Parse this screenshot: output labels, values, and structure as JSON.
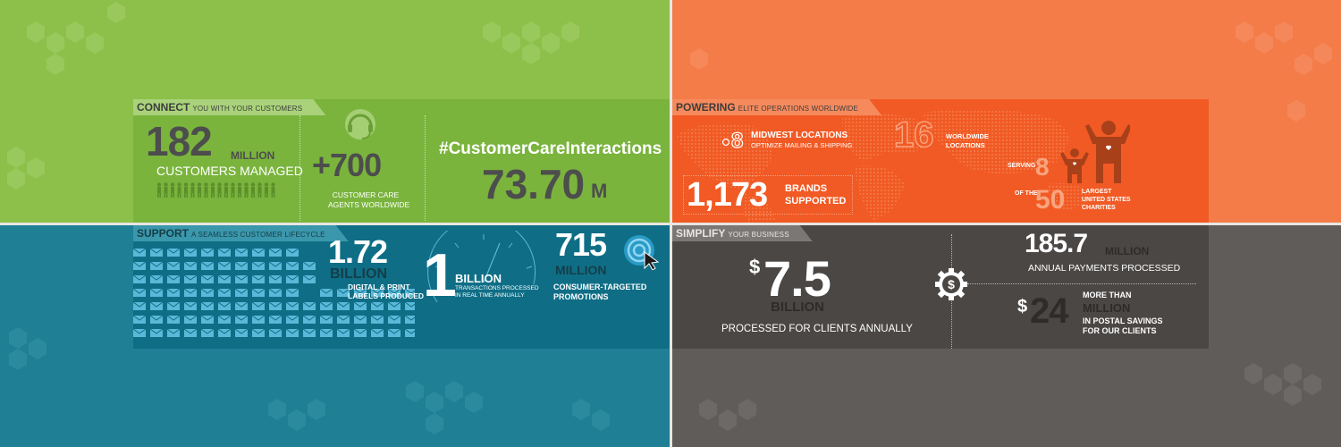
{
  "connect": {
    "tab_title": "CONNECT",
    "tab_subtitle": "YOU WITH YOUR CUSTOMERS",
    "customers_number": "182",
    "customers_unit": "MILLION",
    "customers_label": "CUSTOMERS MANAGED",
    "agents_number": "+700",
    "agents_label_1": "CUSTOMER CARE",
    "agents_label_2": "AGENTS WORLDWIDE",
    "hashtag": "#CustomerCareInteractions",
    "interactions_number": "73.70",
    "interactions_unit": "M"
  },
  "powering": {
    "tab_title": "POWERING",
    "tab_subtitle": "ELITE OPERATIONS WORLDWIDE",
    "midwest_number": "8",
    "midwest_label_1": "MIDWEST LOCATIONS",
    "midwest_label_2": "OPTIMIZE MAILING & SHIPPING",
    "worldwide_number": "16",
    "worldwide_label_1": "WORLDWIDE",
    "worldwide_label_2": "LOCATIONS",
    "brands_number": "1,173",
    "brands_label_1": "BRANDS",
    "brands_label_2": "SUPPORTED",
    "serving_label": "SERVING",
    "serving_number": "8",
    "ofthe_label": "OF THE",
    "charities_number": "50",
    "charities_label_1": "LARGEST",
    "charities_label_2": "UNITED STATES",
    "charities_label_3": "CHARITIES"
  },
  "support": {
    "tab_title": "SUPPORT",
    "tab_subtitle": "A SEAMLESS CUSTOMER LIFECYCLE",
    "labels_number": "1.72",
    "labels_unit": "BILLION",
    "labels_label_1": "DIGITAL & PRINT",
    "labels_label_2": "LABELS PRODUCED",
    "transactions_number": "1",
    "transactions_unit": "BILLION",
    "transactions_label_1": "TRANSACTIONS PROCESSED",
    "transactions_label_2": "IN REAL TIME ANNUALLY",
    "promotions_number": "715",
    "promotions_unit": "MILLION",
    "promotions_label_1": "CONSUMER-TARGETED",
    "promotions_label_2": "PROMOTIONS"
  },
  "simplify": {
    "tab_title": "SIMPLIFY",
    "tab_subtitle": "YOUR BUSINESS",
    "processed_currency": "$",
    "processed_number": "7.5",
    "processed_unit": "BILLION",
    "processed_label": "PROCESSED FOR CLIENTS ANNUALLY",
    "payments_number": "185.7",
    "payments_unit": "MILLION",
    "payments_label": "ANNUAL PAYMENTS PROCESSED",
    "savings_currency": "$",
    "savings_number": "24",
    "savings_label_1": "MORE THAN",
    "savings_unit": "MILLION",
    "savings_label_2": "IN POSTAL SAVINGS",
    "savings_label_3": "FOR OUR CLIENTS"
  },
  "icons": [
    "headset-icon",
    "people-row-icon",
    "map-pin-icon",
    "family-icon",
    "envelope-icon",
    "clock-icon",
    "target-cursor-icon",
    "dollar-gear-icon"
  ],
  "colors": {
    "green": "#8cc04a",
    "orange": "#f47c48",
    "teal": "#1f7f95",
    "gray": "#5f5c5a"
  }
}
